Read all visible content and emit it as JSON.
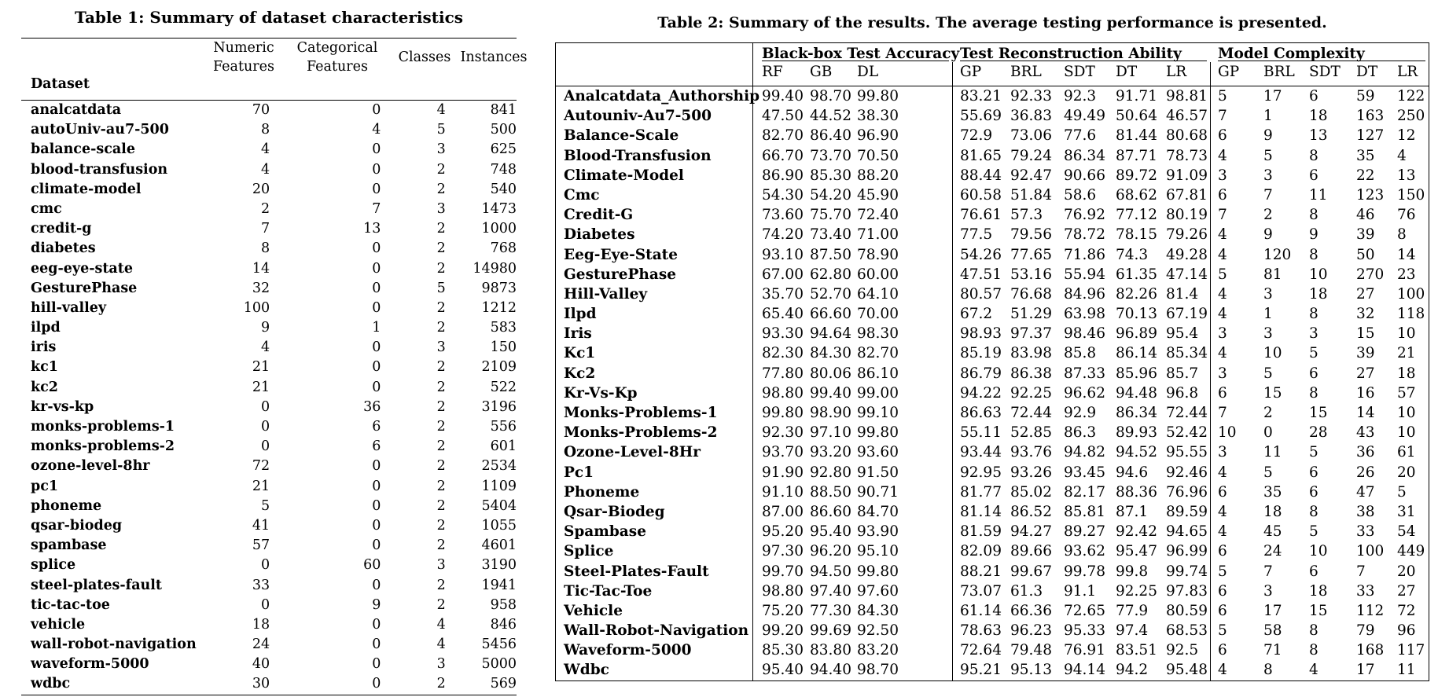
{
  "table1": {
    "caption": "Table 1: Summary of dataset characteristics",
    "headers": {
      "dataset": "Dataset",
      "numeric_line1": "Numeric",
      "numeric_line2": "Features",
      "categorical_line1": "Categorical",
      "categorical_line2": "Features",
      "classes": "Classes",
      "instances": "Instances"
    },
    "rows": [
      [
        "analcatdata",
        "70",
        "0",
        "4",
        "841"
      ],
      [
        "autoUniv-au7-500",
        "8",
        "4",
        "5",
        "500"
      ],
      [
        "balance-scale",
        "4",
        "0",
        "3",
        "625"
      ],
      [
        "blood-transfusion",
        "4",
        "0",
        "2",
        "748"
      ],
      [
        "climate-model",
        "20",
        "0",
        "2",
        "540"
      ],
      [
        "cmc",
        "2",
        "7",
        "3",
        "1473"
      ],
      [
        "credit-g",
        "7",
        "13",
        "2",
        "1000"
      ],
      [
        "diabetes",
        "8",
        "0",
        "2",
        "768"
      ],
      [
        "eeg-eye-state",
        "14",
        "0",
        "2",
        "14980"
      ],
      [
        "GesturePhase",
        "32",
        "0",
        "5",
        "9873"
      ],
      [
        "hill-valley",
        "100",
        "0",
        "2",
        "1212"
      ],
      [
        "ilpd",
        "9",
        "1",
        "2",
        "583"
      ],
      [
        "iris",
        "4",
        "0",
        "3",
        "150"
      ],
      [
        "kc1",
        "21",
        "0",
        "2",
        "2109"
      ],
      [
        "kc2",
        "21",
        "0",
        "2",
        "522"
      ],
      [
        "kr-vs-kp",
        "0",
        "36",
        "2",
        "3196"
      ],
      [
        "monks-problems-1",
        "0",
        "6",
        "2",
        "556"
      ],
      [
        "monks-problems-2",
        "0",
        "6",
        "2",
        "601"
      ],
      [
        "ozone-level-8hr",
        "72",
        "0",
        "2",
        "2534"
      ],
      [
        "pc1",
        "21",
        "0",
        "2",
        "1109"
      ],
      [
        "phoneme",
        "5",
        "0",
        "2",
        "5404"
      ],
      [
        "qsar-biodeg",
        "41",
        "0",
        "2",
        "1055"
      ],
      [
        "spambase",
        "57",
        "0",
        "2",
        "4601"
      ],
      [
        "splice",
        "0",
        "60",
        "3",
        "3190"
      ],
      [
        "steel-plates-fault",
        "33",
        "0",
        "2",
        "1941"
      ],
      [
        "tic-tac-toe",
        "0",
        "9",
        "2",
        "958"
      ],
      [
        "vehicle",
        "18",
        "0",
        "4",
        "846"
      ],
      [
        "wall-robot-navigation",
        "24",
        "0",
        "4",
        "5456"
      ],
      [
        "waveform-5000",
        "40",
        "0",
        "3",
        "5000"
      ],
      [
        "wdbc",
        "30",
        "0",
        "2",
        "569"
      ]
    ]
  },
  "table2": {
    "caption": "Table 2: Summary of the results. The average testing performance is presented.",
    "groups": [
      "Black-box Test Accuracy",
      "Test Reconstruction Ability",
      "Model Complexity"
    ],
    "subheaders": [
      "RF",
      "GB",
      "DL",
      "GP",
      "BRL",
      "SDT",
      "DT",
      "LR",
      "GP",
      "BRL",
      "SDT",
      "DT",
      "LR"
    ],
    "rows": [
      [
        "Analcatdata_Authorship",
        "99.40",
        "98.70",
        "99.80",
        "83.21",
        "92.33",
        "92.3",
        "91.71",
        "98.81",
        "5",
        "17",
        "6",
        "59",
        "122"
      ],
      [
        "Autouniv-Au7-500",
        "47.50",
        "44.52",
        "38.30",
        "55.69",
        "36.83",
        "49.49",
        "50.64",
        "46.57",
        "7",
        "1",
        "18",
        "163",
        "250"
      ],
      [
        "Balance-Scale",
        "82.70",
        "86.40",
        "96.90",
        "72.9",
        "73.06",
        "77.6",
        "81.44",
        "80.68",
        "6",
        "9",
        "13",
        "127",
        "12"
      ],
      [
        "Blood-Transfusion",
        "66.70",
        "73.70",
        "70.50",
        "81.65",
        "79.24",
        "86.34",
        "87.71",
        "78.73",
        "4",
        "5",
        "8",
        "35",
        "4"
      ],
      [
        "Climate-Model",
        "86.90",
        "85.30",
        "88.20",
        "88.44",
        "92.47",
        "90.66",
        "89.72",
        "91.09",
        "3",
        "3",
        "6",
        "22",
        "13"
      ],
      [
        "Cmc",
        "54.30",
        "54.20",
        "45.90",
        "60.58",
        "51.84",
        "58.6",
        "68.62",
        "67.81",
        "6",
        "7",
        "11",
        "123",
        "150"
      ],
      [
        "Credit-G",
        "73.60",
        "75.70",
        "72.40",
        "76.61",
        "57.3",
        "76.92",
        "77.12",
        "80.19",
        "7",
        "2",
        "8",
        "46",
        "76"
      ],
      [
        "Diabetes",
        "74.20",
        "73.40",
        "71.00",
        "77.5",
        "79.56",
        "78.72",
        "78.15",
        "79.26",
        "4",
        "9",
        "9",
        "39",
        "8"
      ],
      [
        "Eeg-Eye-State",
        "93.10",
        "87.50",
        "78.90",
        "54.26",
        "77.65",
        "71.86",
        "74.3",
        "49.28",
        "4",
        "120",
        "8",
        "50",
        "14"
      ],
      [
        "GesturePhase",
        "67.00",
        "62.80",
        "60.00",
        "47.51",
        "53.16",
        "55.94",
        "61.35",
        "47.14",
        "5",
        "81",
        "10",
        "270",
        "23"
      ],
      [
        "Hill-Valley",
        "35.70",
        "52.70",
        "64.10",
        "80.57",
        "76.68",
        "84.96",
        "82.26",
        "81.4",
        "4",
        "3",
        "18",
        "27",
        "100"
      ],
      [
        "Ilpd",
        "65.40",
        "66.60",
        "70.00",
        "67.2",
        "51.29",
        "63.98",
        "70.13",
        "67.19",
        "4",
        "1",
        "8",
        "32",
        "118"
      ],
      [
        "Iris",
        "93.30",
        "94.64",
        "98.30",
        "98.93",
        "97.37",
        "98.46",
        "96.89",
        "95.4",
        "3",
        "3",
        "3",
        "15",
        "10"
      ],
      [
        "Kc1",
        "82.30",
        "84.30",
        "82.70",
        "85.19",
        "83.98",
        "85.8",
        "86.14",
        "85.34",
        "4",
        "10",
        "5",
        "39",
        "21"
      ],
      [
        "Kc2",
        "77.80",
        "80.06",
        "86.10",
        "86.79",
        "86.38",
        "87.33",
        "85.96",
        "85.7",
        "3",
        "5",
        "6",
        "27",
        "18"
      ],
      [
        "Kr-Vs-Kp",
        "98.80",
        "99.40",
        "99.00",
        "94.22",
        "92.25",
        "96.62",
        "94.48",
        "96.8",
        "6",
        "15",
        "8",
        "16",
        "57"
      ],
      [
        "Monks-Problems-1",
        "99.80",
        "98.90",
        "99.10",
        "86.63",
        "72.44",
        "92.9",
        "86.34",
        "72.44",
        "7",
        "2",
        "15",
        "14",
        "10"
      ],
      [
        "Monks-Problems-2",
        "92.30",
        "97.10",
        "99.80",
        "55.11",
        "52.85",
        "86.3",
        "89.93",
        "52.42",
        "10",
        "0",
        "28",
        "43",
        "10"
      ],
      [
        "Ozone-Level-8Hr",
        "93.70",
        "93.20",
        "93.60",
        "93.44",
        "93.76",
        "94.82",
        "94.52",
        "95.55",
        "3",
        "11",
        "5",
        "36",
        "61"
      ],
      [
        "Pc1",
        "91.90",
        "92.80",
        "91.50",
        "92.95",
        "93.26",
        "93.45",
        "94.6",
        "92.46",
        "4",
        "5",
        "6",
        "26",
        "20"
      ],
      [
        "Phoneme",
        "91.10",
        "88.50",
        "90.71",
        "81.77",
        "85.02",
        "82.17",
        "88.36",
        "76.96",
        "6",
        "35",
        "6",
        "47",
        "5"
      ],
      [
        "Qsar-Biodeg",
        "87.00",
        "86.60",
        "84.70",
        "81.14",
        "86.52",
        "85.81",
        "87.1",
        "89.59",
        "4",
        "18",
        "8",
        "38",
        "31"
      ],
      [
        "Spambase",
        "95.20",
        "95.40",
        "93.90",
        "81.59",
        "94.27",
        "89.27",
        "92.42",
        "94.65",
        "4",
        "45",
        "5",
        "33",
        "54"
      ],
      [
        "Splice",
        "97.30",
        "96.20",
        "95.10",
        "82.09",
        "89.66",
        "93.62",
        "95.47",
        "96.99",
        "6",
        "24",
        "10",
        "100",
        "449"
      ],
      [
        "Steel-Plates-Fault",
        "99.70",
        "94.50",
        "99.80",
        "88.21",
        "99.67",
        "99.78",
        "99.8",
        "99.74",
        "5",
        "7",
        "6",
        "7",
        "20"
      ],
      [
        "Tic-Tac-Toe",
        "98.80",
        "97.40",
        "97.60",
        "73.07",
        "61.3",
        "91.1",
        "92.25",
        "97.83",
        "6",
        "3",
        "18",
        "33",
        "27"
      ],
      [
        "Vehicle",
        "75.20",
        "77.30",
        "84.30",
        "61.14",
        "66.36",
        "72.65",
        "77.9",
        "80.59",
        "6",
        "17",
        "15",
        "112",
        "72"
      ],
      [
        "Wall-Robot-Navigation",
        "99.20",
        "99.69",
        "92.50",
        "78.63",
        "96.23",
        "95.33",
        "97.4",
        "68.53",
        "5",
        "58",
        "8",
        "79",
        "96"
      ],
      [
        "Waveform-5000",
        "85.30",
        "83.80",
        "83.20",
        "72.64",
        "79.48",
        "76.91",
        "83.51",
        "92.5",
        "6",
        "71",
        "8",
        "168",
        "117"
      ],
      [
        "Wdbc",
        "95.40",
        "94.40",
        "98.70",
        "95.21",
        "95.13",
        "94.14",
        "94.2",
        "95.48",
        "4",
        "8",
        "4",
        "17",
        "11"
      ]
    ]
  }
}
